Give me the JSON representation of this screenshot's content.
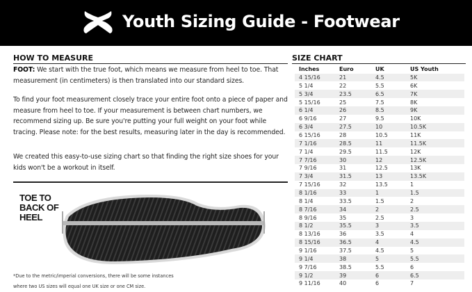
{
  "header": {
    "title": "Youth Sizing Guide - Footwear",
    "brand_color": "#000000"
  },
  "measure": {
    "heading": "HOW TO MEASURE",
    "foot_label": "FOOT:",
    "p1": " We start with the true foot, which means we measure from heel to toe. That measurement (in centimeters) is then translated into our standard sizes.",
    "p2": "To find your foot measurement closely trace your entire foot onto a piece of paper and measure from heel to toe. If your measurement is between chart numbers, we recommend sizing up. Be sure you're putting your full weight on your foot while tracing. Please note: for the best results, measuring later in the day is recommended.",
    "p3": "We created this easy-to-use sizing chart so that finding the right size shoes for your kids won't be a workout in itself.",
    "diagram_label": [
      "TOE TO",
      "BACK OF",
      "HEEL"
    ],
    "footnote": [
      "*Due to the metric/imperial conversions, there will be some instances",
      "where two US sizes will equal one UK size or one CM size."
    ]
  },
  "chart": {
    "heading": "SIZE CHART",
    "columns": [
      "Inches",
      "Euro",
      "UK",
      "US Youth"
    ],
    "rows": [
      [
        "4 15/16",
        "21",
        "4.5",
        "5K"
      ],
      [
        "5 1/4",
        "22",
        "5.5",
        "6K"
      ],
      [
        "5 3/4",
        "23.5",
        "6.5",
        "7K"
      ],
      [
        "5 15/16",
        "25",
        "7.5",
        "8K"
      ],
      [
        "6 1/4",
        "26",
        "8.5",
        "9K"
      ],
      [
        "6 9/16",
        "27",
        "9.5",
        "10K"
      ],
      [
        "6 3/4",
        "27.5",
        "10",
        "10.5K"
      ],
      [
        "6 15/16",
        "28",
        "10.5",
        "11K"
      ],
      [
        "7 1/16",
        "28.5",
        "11",
        "11.5K"
      ],
      [
        "7 1/4",
        "29.5",
        "11.5",
        "12K"
      ],
      [
        "7 7/16",
        "30",
        "12",
        "12.5K"
      ],
      [
        "7 9/16",
        "31",
        "12.5",
        "13K"
      ],
      [
        "7 3/4",
        "31.5",
        "13",
        "13.5K"
      ],
      [
        "7 15/16",
        "32",
        "13.5",
        "1"
      ],
      [
        "8 1/16",
        "33",
        "1",
        "1.5"
      ],
      [
        "8 1/4",
        "33.5",
        "1.5",
        "2"
      ],
      [
        "8 7/16",
        "34",
        "2",
        "2.5"
      ],
      [
        "8 9/16",
        "35",
        "2.5",
        "3"
      ],
      [
        "8 1/2",
        "35.5",
        "3",
        "3.5"
      ],
      [
        "8 13/16",
        "36",
        "3.5",
        "4"
      ],
      [
        "8 15/16",
        "36.5",
        "4",
        "4.5"
      ],
      [
        "9 1/16",
        "37.5",
        "4.5",
        "5"
      ],
      [
        "9 1/4",
        "38",
        "5",
        "5.5"
      ],
      [
        "9 7/16",
        "38.5",
        "5.5",
        "6"
      ],
      [
        "9 1/2",
        "39",
        "6",
        "6.5"
      ],
      [
        "9 11/16",
        "40",
        "6",
        "7"
      ]
    ]
  }
}
